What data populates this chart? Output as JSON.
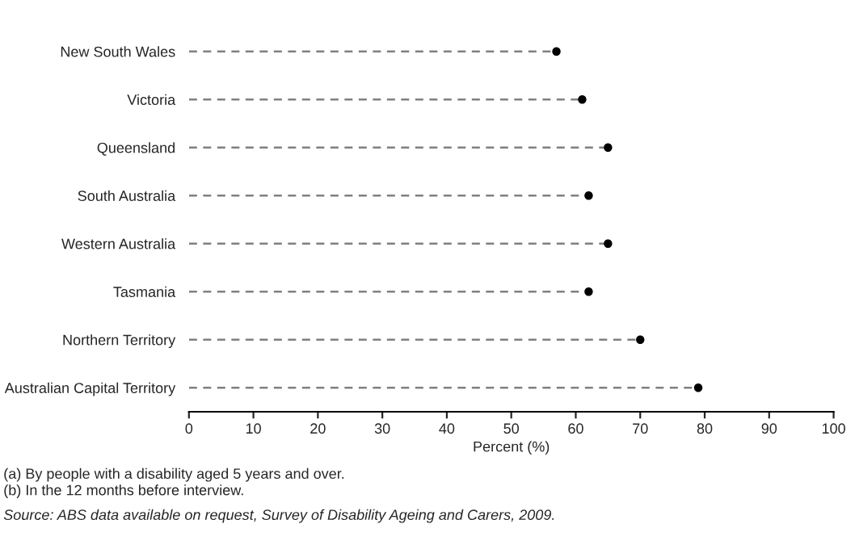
{
  "chart_data": {
    "type": "lollipop",
    "orientation": "horizontal",
    "categories": [
      "New South Wales",
      "Victoria",
      "Queensland",
      "South Australia",
      "Western Australia",
      "Tasmania",
      "Northern Territory",
      "Australian Capital Territory"
    ],
    "values": [
      57,
      61,
      65,
      62,
      65,
      62,
      70,
      79
    ],
    "color": "#000000",
    "xlabel": "Percent (%)",
    "xlim": [
      0,
      100
    ],
    "xticks": [
      0,
      10,
      20,
      30,
      40,
      50,
      60,
      70,
      80,
      90,
      100
    ],
    "marker": "circle",
    "line_style": "dashed",
    "grid": false,
    "legend": false,
    "annotations": [
      "(a) By people with a disability aged 5 years and over.",
      "(b) In the 12 months before interview.",
      "Source: ABS data available on request, Survey of Disability Ageing and Carers, 2009."
    ]
  }
}
